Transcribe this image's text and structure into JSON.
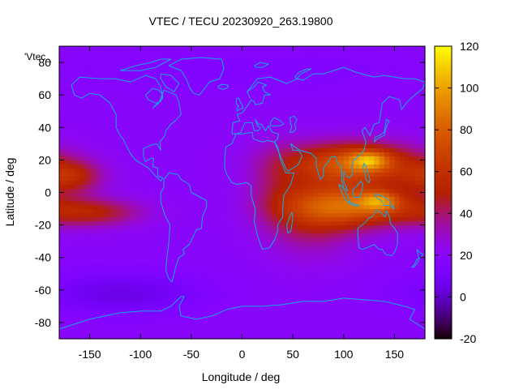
{
  "chart_data": {
    "type": "heatmap",
    "title": "VTEC / TECU 20230920_263.19800",
    "xlabel": "Longitude / deg",
    "ylabel": "Latitude / deg",
    "series_key": "'Vtec_",
    "xlim": [
      -180,
      180
    ],
    "ylim": [
      -90,
      90
    ],
    "xticks": [
      -150,
      -100,
      -50,
      0,
      50,
      100,
      150
    ],
    "yticks": [
      -80,
      -60,
      -40,
      -20,
      0,
      20,
      40,
      60,
      80
    ],
    "colorbar": {
      "range": [
        -20,
        120
      ],
      "ticks": [
        -20,
        0,
        20,
        40,
        60,
        80,
        100,
        120
      ],
      "colormap": "gnuplot-rgbformulae-7-5-15"
    },
    "background_value": 20,
    "features": [
      {
        "name": "peak-north",
        "lon": 125,
        "lat": 20,
        "value": 115
      },
      {
        "name": "peak-south",
        "lon": 135,
        "lat": -5,
        "value": 110
      },
      {
        "name": "equatorial-band-north",
        "lon": 110,
        "lat": 18,
        "value": 78
      },
      {
        "name": "equatorial-band-south",
        "lon": 110,
        "lat": -8,
        "value": 75
      },
      {
        "name": "pacific-tail-north",
        "lon": -170,
        "lat": 10,
        "value": 52
      },
      {
        "name": "pacific-tail-south",
        "lon": -150,
        "lat": -12,
        "value": 50
      },
      {
        "name": "southern-low",
        "lon": -120,
        "lat": -62,
        "value": 5
      }
    ],
    "coastline_color": "#18a8e8",
    "grid": false,
    "legend_position": "top-left"
  }
}
